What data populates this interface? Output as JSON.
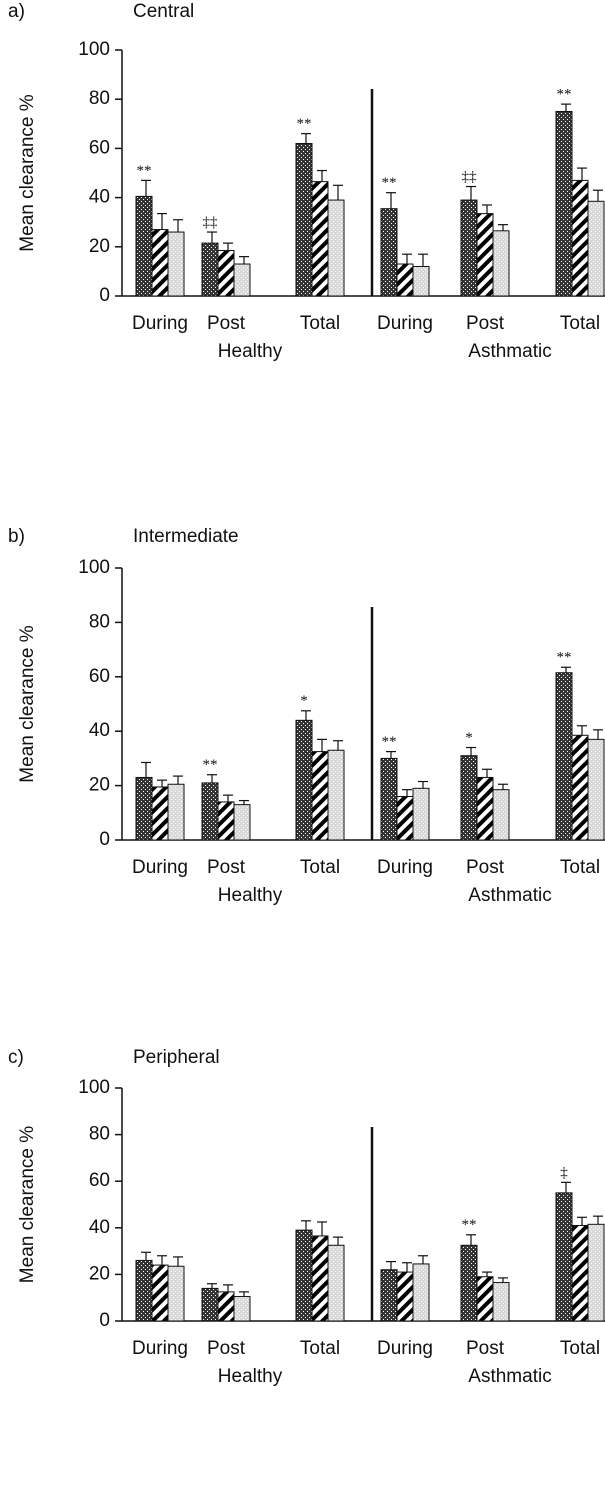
{
  "chart_data": [
    {
      "type": "bar",
      "panel": "a)",
      "title": "Central",
      "ylabel": "Mean clearance %",
      "categories": [
        "During",
        "Post",
        "Total",
        "During",
        "Post",
        "Total"
      ],
      "groups": [
        "Healthy",
        "Asthmatic"
      ],
      "series": [
        {
          "color": "#333333",
          "pattern": "dots",
          "values": [
            40.5,
            21.5,
            62,
            35.5,
            39,
            75
          ],
          "errors": [
            6.5,
            4.5,
            4,
            6.5,
            5.5,
            3
          ]
        },
        {
          "color": "#000000",
          "pattern": "hatch",
          "values": [
            27,
            18.5,
            46.5,
            13,
            33.5,
            47
          ],
          "errors": [
            6.5,
            3,
            4.5,
            4,
            3.5,
            5
          ]
        },
        {
          "color": "#d9d9d9",
          "pattern": "dots",
          "values": [
            26,
            13,
            39,
            12,
            26.5,
            38.5
          ],
          "errors": [
            5,
            3,
            6,
            5,
            2.5,
            4.5
          ]
        }
      ],
      "annotations": [
        "**",
        "‡‡",
        "**",
        "**",
        "‡‡",
        "**"
      ],
      "ylim": [
        0,
        100
      ],
      "yticks": [
        0,
        20,
        40,
        60,
        80,
        100
      ]
    },
    {
      "type": "bar",
      "panel": "b)",
      "title": "Intermediate",
      "ylabel": "Mean clearance %",
      "categories": [
        "During",
        "Post",
        "Total",
        "During",
        "Post",
        "Total"
      ],
      "groups": [
        "Healthy",
        "Asthmatic"
      ],
      "series": [
        {
          "color": "#333333",
          "pattern": "dots",
          "values": [
            23,
            21,
            44,
            30,
            31,
            61.5
          ],
          "errors": [
            5.5,
            3,
            3.5,
            2.5,
            3,
            2
          ]
        },
        {
          "color": "#000000",
          "pattern": "hatch",
          "values": [
            19.5,
            14,
            32.5,
            16,
            23,
            38.5
          ],
          "errors": [
            2.5,
            2.5,
            4.5,
            2.5,
            3,
            3.5
          ]
        },
        {
          "color": "#d9d9d9",
          "pattern": "dots",
          "values": [
            20.5,
            13,
            33,
            19,
            18.5,
            37
          ],
          "errors": [
            3,
            1.5,
            3.5,
            2.5,
            2,
            3.5
          ]
        }
      ],
      "annotations": [
        null,
        "**",
        "*",
        "**",
        "*",
        "**"
      ],
      "ylim": [
        0,
        100
      ],
      "yticks": [
        0,
        20,
        40,
        60,
        80,
        100
      ]
    },
    {
      "type": "bar",
      "panel": "c)",
      "title": "Peripheral",
      "ylabel": "Mean clearance %",
      "categories": [
        "During",
        "Post",
        "Total",
        "During",
        "Post",
        "Total"
      ],
      "groups": [
        "Healthy",
        "Asthmatic"
      ],
      "series": [
        {
          "color": "#333333",
          "pattern": "dots",
          "values": [
            26,
            14,
            39,
            22,
            32.5,
            55
          ],
          "errors": [
            3.5,
            2,
            4,
            3.5,
            4.5,
            4.5
          ]
        },
        {
          "color": "#000000",
          "pattern": "hatch",
          "values": [
            24,
            12.5,
            36.5,
            21,
            19,
            41
          ],
          "errors": [
            4,
            3,
            6,
            4,
            2,
            3.5
          ]
        },
        {
          "color": "#d9d9d9",
          "pattern": "dots",
          "values": [
            23.5,
            10.5,
            32.5,
            24.5,
            16.5,
            41.5
          ],
          "errors": [
            4,
            2,
            3.5,
            3.5,
            2,
            3.5
          ]
        }
      ],
      "annotations": [
        null,
        null,
        null,
        null,
        "**",
        "‡"
      ],
      "ylim": [
        0,
        100
      ],
      "yticks": [
        0,
        20,
        40,
        60,
        80,
        100
      ]
    }
  ]
}
